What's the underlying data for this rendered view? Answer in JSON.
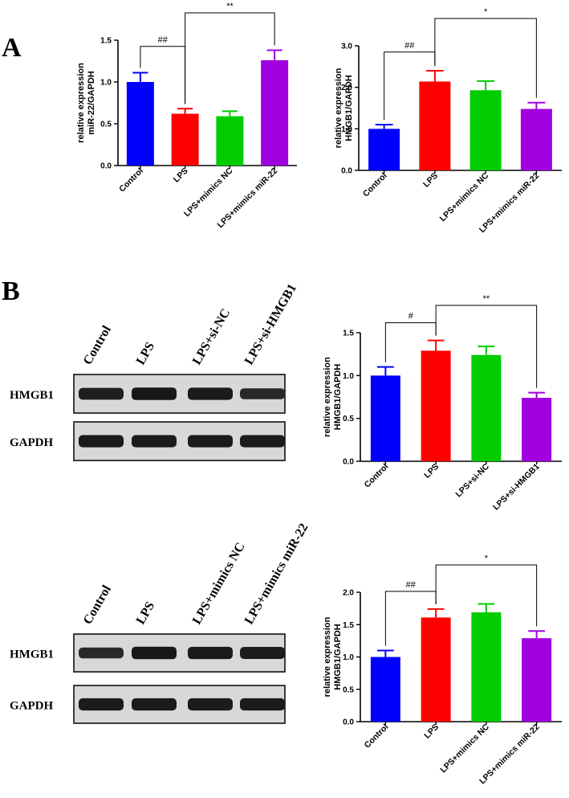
{
  "panels": {
    "a": "A",
    "b": "B"
  },
  "chart_data": [
    {
      "type": "bar",
      "categories": [
        "Control",
        "LPS",
        "LPS+mimics NC",
        "LPS+mimics miR-22"
      ],
      "values": [
        1.0,
        0.62,
        0.59,
        1.26
      ],
      "errors": [
        0.11,
        0.06,
        0.06,
        0.12
      ],
      "colors": [
        "#0000ff",
        "#ff0000",
        "#00cc00",
        "#a000e0"
      ],
      "ylabel": [
        "relative expression",
        "miR-22/GAPDH"
      ],
      "ylim": [
        0,
        1.5
      ],
      "yticks": [
        "0.0",
        "0.5",
        "1.0",
        "1.5"
      ],
      "significance": [
        {
          "from": 0,
          "to": 1,
          "label": "##"
        },
        {
          "from": 1,
          "to": 3,
          "label": "**"
        }
      ]
    },
    {
      "type": "bar",
      "categories": [
        "Control",
        "LPS",
        "LPS+mimics NC",
        "LPS+mimics miR-22"
      ],
      "values": [
        1.0,
        2.14,
        1.93,
        1.48
      ],
      "errors": [
        0.1,
        0.26,
        0.22,
        0.15
      ],
      "colors": [
        "#0000ff",
        "#ff0000",
        "#00cc00",
        "#a000e0"
      ],
      "ylabel": [
        "relative expression",
        "HMGB1/GAPDH"
      ],
      "ylim": [
        0,
        3.0
      ],
      "yticks": [
        "0.0",
        "1.0",
        "2.0",
        "3.0"
      ],
      "significance": [
        {
          "from": 0,
          "to": 1,
          "label": "##"
        },
        {
          "from": 1,
          "to": 3,
          "label": "*"
        }
      ]
    },
    {
      "type": "bar",
      "categories": [
        "Control",
        "LPS",
        "LPS+si-NC",
        "LPS+si-HMGB1"
      ],
      "values": [
        1.0,
        1.29,
        1.24,
        0.74
      ],
      "errors": [
        0.1,
        0.12,
        0.1,
        0.06
      ],
      "colors": [
        "#0000ff",
        "#ff0000",
        "#00cc00",
        "#a000e0"
      ],
      "ylabel": [
        "relative expression",
        "HMGB1/GAPDH"
      ],
      "ylim": [
        0,
        1.5
      ],
      "yticks": [
        "0.0",
        "0.5",
        "1.0",
        "1.5"
      ],
      "significance": [
        {
          "from": 0,
          "to": 1,
          "label": "#"
        },
        {
          "from": 1,
          "to": 3,
          "label": "**"
        }
      ]
    },
    {
      "type": "bar",
      "categories": [
        "Control",
        "LPS",
        "LPS+mimics NC",
        "LPS+mimics miR-22"
      ],
      "values": [
        1.0,
        1.61,
        1.69,
        1.29
      ],
      "errors": [
        0.1,
        0.13,
        0.13,
        0.11
      ],
      "colors": [
        "#0000ff",
        "#ff0000",
        "#00cc00",
        "#a000e0"
      ],
      "ylabel": [
        "relative expression",
        "HMGB1/GAPDH"
      ],
      "ylim": [
        0,
        2.0
      ],
      "yticks": [
        "0.0",
        "0.5",
        "1.0",
        "1.5",
        "2.0"
      ],
      "significance": [
        {
          "from": 0,
          "to": 1,
          "label": "##"
        },
        {
          "from": 1,
          "to": 3,
          "label": "*"
        }
      ]
    }
  ],
  "blots": [
    {
      "lanes": [
        "Control",
        "LPS",
        "LPS+si-NC",
        "LPS+si-HMGB1"
      ],
      "rows": [
        {
          "label": "HMGB1",
          "intensity": [
            0.85,
            0.95,
            0.9,
            0.7
          ]
        },
        {
          "label": "GAPDH",
          "intensity": [
            0.9,
            0.9,
            0.9,
            0.9
          ]
        }
      ]
    },
    {
      "lanes": [
        "Control",
        "LPS",
        "LPS+mimics NC",
        "LPS+mimics miR-22"
      ],
      "rows": [
        {
          "label": "HMGB1",
          "intensity": [
            0.7,
            0.95,
            0.92,
            0.88
          ]
        },
        {
          "label": "GAPDH",
          "intensity": [
            0.9,
            0.9,
            0.9,
            0.9
          ]
        }
      ]
    }
  ]
}
